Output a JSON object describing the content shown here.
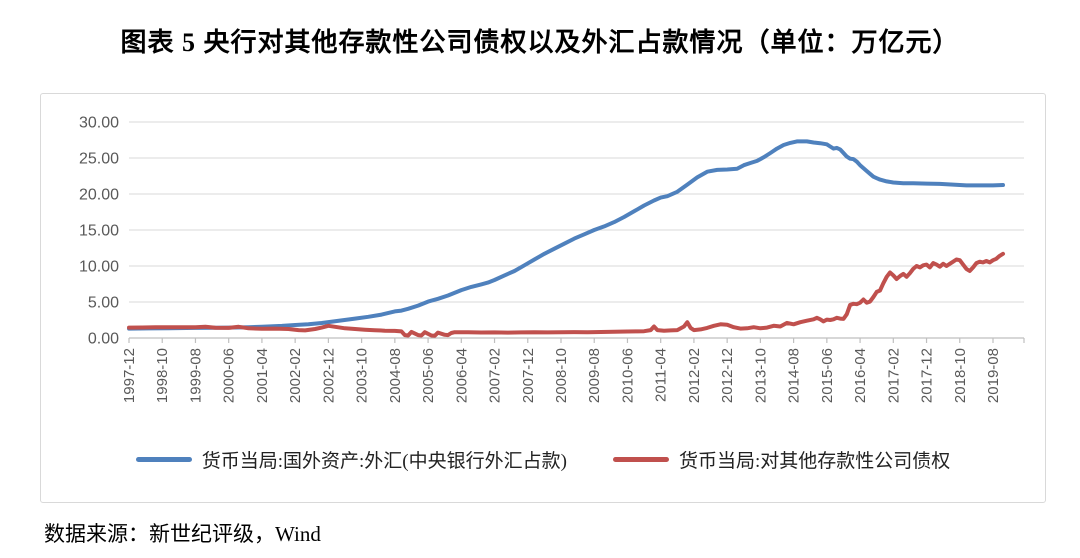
{
  "title": "图表 5  央行对其他存款性公司债权以及外汇占款情况（单位：万亿元）",
  "source": "数据来源：新世纪评级，Wind",
  "colors": {
    "series_fx_blue": "#4F81BD",
    "series_claims_red": "#C0504D",
    "gridline": "#D9D9D9",
    "axis": "#BFBFBF",
    "tick_text": "#595959",
    "title_text": "#000000"
  },
  "chart_data": {
    "type": "line",
    "title": "图表 5  央行对其他存款性公司债权以及外汇占款情况（单位：万亿元）",
    "unit": "万亿元",
    "x_is_months": true,
    "x_start": "1997-12",
    "x_end": "2019-10",
    "x_tick_interval_months": 10,
    "x_tick_labels": [
      "1997-12",
      "1998-10",
      "1999-08",
      "2000-06",
      "2001-04",
      "2002-02",
      "2002-12",
      "2003-10",
      "2004-08",
      "2005-06",
      "2006-04",
      "2007-02",
      "2007-12",
      "2008-10",
      "2009-08",
      "2010-06",
      "2011-04",
      "2012-02",
      "2012-12",
      "2013-10",
      "2014-08",
      "2015-06",
      "2016-04",
      "2017-02",
      "2017-12",
      "2018-10",
      "2019-08"
    ],
    "ylim": [
      0,
      30
    ],
    "y_tick_step": 5,
    "y_tick_labels": [
      "0.00",
      "5.00",
      "10.00",
      "15.00",
      "20.00",
      "25.00",
      "30.00"
    ],
    "grid": true,
    "legend_position": "bottom",
    "series": [
      {
        "name": "货币当局:国外资产:外汇(中央银行外汇占款)",
        "color": "#4F81BD",
        "points": [
          [
            0,
            1.3
          ],
          [
            6,
            1.33
          ],
          [
            12,
            1.36
          ],
          [
            20,
            1.4
          ],
          [
            26,
            1.42
          ],
          [
            30,
            1.45
          ],
          [
            36,
            1.5
          ],
          [
            40,
            1.56
          ],
          [
            46,
            1.68
          ],
          [
            50,
            1.8
          ],
          [
            54,
            1.92
          ],
          [
            58,
            2.08
          ],
          [
            60,
            2.21
          ],
          [
            64,
            2.45
          ],
          [
            68,
            2.7
          ],
          [
            72,
            2.95
          ],
          [
            76,
            3.25
          ],
          [
            80,
            3.7
          ],
          [
            82,
            3.8
          ],
          [
            84,
            4.05
          ],
          [
            87,
            4.5
          ],
          [
            90,
            5.05
          ],
          [
            93,
            5.45
          ],
          [
            96,
            5.9
          ],
          [
            100,
            6.65
          ],
          [
            103,
            7.1
          ],
          [
            106,
            7.45
          ],
          [
            108,
            7.7
          ],
          [
            110,
            8.05
          ],
          [
            113,
            8.7
          ],
          [
            116,
            9.3
          ],
          [
            119,
            10.1
          ],
          [
            122,
            10.9
          ],
          [
            125,
            11.7
          ],
          [
            128,
            12.4
          ],
          [
            131,
            13.1
          ],
          [
            134,
            13.8
          ],
          [
            137,
            14.4
          ],
          [
            140,
            15.0
          ],
          [
            143,
            15.5
          ],
          [
            146,
            16.1
          ],
          [
            149,
            16.8
          ],
          [
            152,
            17.6
          ],
          [
            155,
            18.4
          ],
          [
            158,
            19.1
          ],
          [
            160,
            19.5
          ],
          [
            162,
            19.7
          ],
          [
            165,
            20.3
          ],
          [
            168,
            21.3
          ],
          [
            171,
            22.3
          ],
          [
            174,
            23.1
          ],
          [
            177,
            23.35
          ],
          [
            180,
            23.4
          ],
          [
            183,
            23.5
          ],
          [
            185,
            24.0
          ],
          [
            187,
            24.3
          ],
          [
            189,
            24.6
          ],
          [
            191,
            25.1
          ],
          [
            193,
            25.7
          ],
          [
            195,
            26.3
          ],
          [
            197,
            26.8
          ],
          [
            199,
            27.1
          ],
          [
            201,
            27.3
          ],
          [
            204,
            27.3
          ],
          [
            206,
            27.15
          ],
          [
            208,
            27.05
          ],
          [
            210,
            26.9
          ],
          [
            211,
            26.6
          ],
          [
            212,
            26.3
          ],
          [
            213,
            26.4
          ],
          [
            214,
            26.2
          ],
          [
            215,
            25.7
          ],
          [
            216,
            25.2
          ],
          [
            217,
            24.9
          ],
          [
            218,
            24.85
          ],
          [
            219,
            24.5
          ],
          [
            220,
            24.0
          ],
          [
            221,
            23.6
          ],
          [
            222,
            23.2
          ],
          [
            223,
            22.8
          ],
          [
            224,
            22.4
          ],
          [
            225,
            22.2
          ],
          [
            226,
            22.0
          ],
          [
            228,
            21.75
          ],
          [
            230,
            21.6
          ],
          [
            233,
            21.5
          ],
          [
            236,
            21.5
          ],
          [
            240,
            21.45
          ],
          [
            244,
            21.4
          ],
          [
            248,
            21.3
          ],
          [
            252,
            21.2
          ],
          [
            256,
            21.2
          ],
          [
            260,
            21.2
          ],
          [
            263,
            21.25
          ]
        ]
      },
      {
        "name": "货币当局:对其他存款性公司债权",
        "color": "#C0504D",
        "points": [
          [
            0,
            1.44
          ],
          [
            4,
            1.46
          ],
          [
            8,
            1.48
          ],
          [
            12,
            1.5
          ],
          [
            16,
            1.48
          ],
          [
            20,
            1.5
          ],
          [
            23,
            1.56
          ],
          [
            26,
            1.42
          ],
          [
            30,
            1.4
          ],
          [
            33,
            1.55
          ],
          [
            36,
            1.35
          ],
          [
            40,
            1.28
          ],
          [
            44,
            1.3
          ],
          [
            48,
            1.25
          ],
          [
            51,
            1.1
          ],
          [
            53,
            1.05
          ],
          [
            56,
            1.25
          ],
          [
            58,
            1.45
          ],
          [
            60,
            1.7
          ],
          [
            62,
            1.55
          ],
          [
            65,
            1.35
          ],
          [
            68,
            1.25
          ],
          [
            71,
            1.15
          ],
          [
            74,
            1.08
          ],
          [
            77,
            1.02
          ],
          [
            80,
            0.98
          ],
          [
            82,
            0.92
          ],
          [
            83,
            0.4
          ],
          [
            84,
            0.35
          ],
          [
            85,
            0.85
          ],
          [
            87,
            0.4
          ],
          [
            88,
            0.35
          ],
          [
            89,
            0.8
          ],
          [
            91,
            0.35
          ],
          [
            92,
            0.3
          ],
          [
            93,
            0.75
          ],
          [
            95,
            0.45
          ],
          [
            96,
            0.4
          ],
          [
            97,
            0.7
          ],
          [
            98,
            0.8
          ],
          [
            102,
            0.8
          ],
          [
            106,
            0.76
          ],
          [
            110,
            0.78
          ],
          [
            114,
            0.75
          ],
          [
            118,
            0.78
          ],
          [
            122,
            0.8
          ],
          [
            126,
            0.78
          ],
          [
            130,
            0.8
          ],
          [
            134,
            0.82
          ],
          [
            138,
            0.8
          ],
          [
            142,
            0.83
          ],
          [
            146,
            0.86
          ],
          [
            150,
            0.9
          ],
          [
            153,
            0.92
          ],
          [
            155,
            0.95
          ],
          [
            157,
            1.1
          ],
          [
            158,
            1.6
          ],
          [
            159,
            1.1
          ],
          [
            161,
            1.0
          ],
          [
            163,
            1.05
          ],
          [
            165,
            1.1
          ],
          [
            167,
            1.6
          ],
          [
            168,
            2.2
          ],
          [
            169,
            1.4
          ],
          [
            170,
            1.1
          ],
          [
            172,
            1.2
          ],
          [
            174,
            1.4
          ],
          [
            176,
            1.7
          ],
          [
            178,
            1.9
          ],
          [
            180,
            1.85
          ],
          [
            182,
            1.5
          ],
          [
            184,
            1.3
          ],
          [
            186,
            1.35
          ],
          [
            188,
            1.5
          ],
          [
            190,
            1.35
          ],
          [
            192,
            1.45
          ],
          [
            194,
            1.7
          ],
          [
            196,
            1.6
          ],
          [
            198,
            2.1
          ],
          [
            200,
            1.9
          ],
          [
            202,
            2.2
          ],
          [
            204,
            2.4
          ],
          [
            206,
            2.6
          ],
          [
            207,
            2.8
          ],
          [
            208,
            2.6
          ],
          [
            209,
            2.3
          ],
          [
            210,
            2.55
          ],
          [
            211,
            2.5
          ],
          [
            212,
            2.6
          ],
          [
            213,
            2.8
          ],
          [
            214,
            2.7
          ],
          [
            215,
            2.65
          ],
          [
            216,
            3.3
          ],
          [
            217,
            4.6
          ],
          [
            218,
            4.75
          ],
          [
            219,
            4.7
          ],
          [
            220,
            4.9
          ],
          [
            221,
            5.35
          ],
          [
            222,
            4.9
          ],
          [
            223,
            5.05
          ],
          [
            224,
            5.7
          ],
          [
            225,
            6.4
          ],
          [
            226,
            6.6
          ],
          [
            227,
            7.6
          ],
          [
            228,
            8.5
          ],
          [
            229,
            9.1
          ],
          [
            230,
            8.7
          ],
          [
            231,
            8.2
          ],
          [
            232,
            8.6
          ],
          [
            233,
            8.9
          ],
          [
            234,
            8.5
          ],
          [
            235,
            9.0
          ],
          [
            236,
            9.6
          ],
          [
            237,
            10.0
          ],
          [
            238,
            9.8
          ],
          [
            239,
            10.1
          ],
          [
            240,
            10.2
          ],
          [
            241,
            9.8
          ],
          [
            242,
            10.4
          ],
          [
            243,
            10.2
          ],
          [
            244,
            9.9
          ],
          [
            245,
            10.3
          ],
          [
            246,
            10.0
          ],
          [
            247,
            10.3
          ],
          [
            248,
            10.6
          ],
          [
            249,
            10.9
          ],
          [
            250,
            10.8
          ],
          [
            251,
            10.2
          ],
          [
            252,
            9.6
          ],
          [
            253,
            9.3
          ],
          [
            254,
            9.8
          ],
          [
            255,
            10.4
          ],
          [
            256,
            10.6
          ],
          [
            257,
            10.5
          ],
          [
            258,
            10.7
          ],
          [
            259,
            10.5
          ],
          [
            260,
            10.8
          ],
          [
            261,
            11.0
          ],
          [
            262,
            11.4
          ],
          [
            263,
            11.7
          ]
        ]
      }
    ]
  }
}
